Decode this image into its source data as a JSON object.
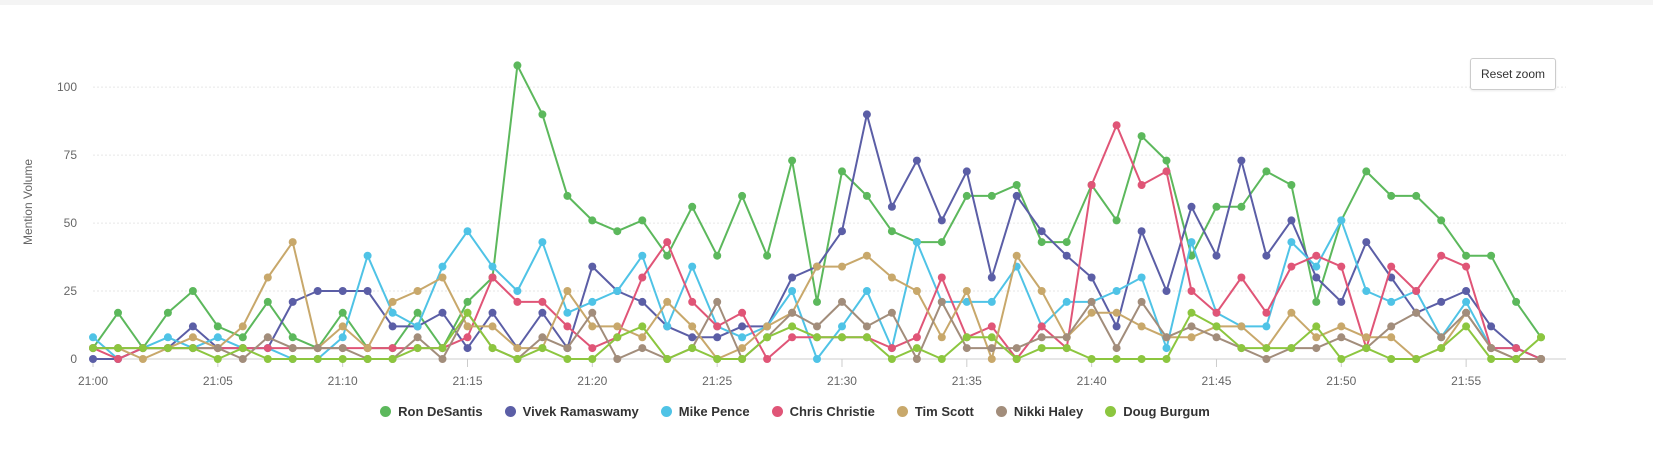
{
  "reset_zoom_label": "Reset zoom",
  "chart_data": {
    "type": "line",
    "ylabel": "Mention Volume",
    "xlabel": "",
    "ylim": [
      0,
      110
    ],
    "y_ticks": [
      "0",
      "25",
      "50",
      "75",
      "100"
    ],
    "y_tick_values": [
      0,
      25,
      50,
      75,
      100
    ],
    "x_ticks": [
      "21:00",
      "21:05",
      "21:10",
      "21:15",
      "21:20",
      "21:25",
      "21:30",
      "21:35",
      "21:40",
      "21:45",
      "21:50",
      "21:55"
    ],
    "x_tick_minutes": [
      0,
      5,
      10,
      15,
      20,
      25,
      30,
      35,
      40,
      45,
      50,
      55
    ],
    "x_range_minutes": [
      0,
      59
    ],
    "x_start": "21:00",
    "x_end": "21:58",
    "grid": "horizontal",
    "legend_position": "bottom-center",
    "series": [
      {
        "name": "Ron DeSantis",
        "color": "#5cb85c",
        "values": [
          4,
          17,
          4,
          17,
          25,
          12,
          8,
          21,
          8,
          4,
          17,
          4,
          4,
          17,
          4,
          21,
          30,
          108,
          90,
          60,
          51,
          47,
          51,
          38,
          56,
          38,
          60,
          38,
          73,
          21,
          69,
          60,
          47,
          43,
          43,
          60,
          60,
          64,
          43,
          43,
          64,
          51,
          82,
          73,
          38,
          56,
          56,
          69,
          64,
          21,
          51,
          69,
          60,
          60,
          51,
          38,
          38,
          21,
          8
        ]
      },
      {
        "name": "Vivek Ramaswamy",
        "color": "#5b5ea6",
        "values": [
          0,
          0,
          4,
          4,
          12,
          4,
          4,
          4,
          21,
          25,
          25,
          25,
          12,
          12,
          17,
          4,
          17,
          4,
          17,
          4,
          34,
          25,
          21,
          12,
          8,
          8,
          12,
          12,
          30,
          34,
          47,
          90,
          56,
          73,
          51,
          69,
          30,
          60,
          47,
          38,
          30,
          12,
          47,
          25,
          56,
          38,
          73,
          38,
          51,
          30,
          21,
          43,
          30,
          17,
          21,
          25,
          12,
          4,
          0
        ]
      },
      {
        "name": "Mike Pence",
        "color": "#4fc3e6",
        "values": [
          8,
          0,
          4,
          8,
          4,
          8,
          4,
          4,
          0,
          0,
          8,
          38,
          17,
          12,
          34,
          47,
          34,
          25,
          43,
          17,
          21,
          25,
          38,
          12,
          34,
          12,
          8,
          12,
          25,
          0,
          12,
          25,
          4,
          43,
          21,
          21,
          21,
          34,
          12,
          21,
          21,
          25,
          30,
          4,
          43,
          17,
          12,
          12,
          43,
          34,
          51,
          25,
          21,
          25,
          8,
          21,
          4,
          4,
          0
        ]
      },
      {
        "name": "Chris Christie",
        "color": "#e05577",
        "values": [
          4,
          0,
          4,
          4,
          4,
          4,
          4,
          4,
          4,
          4,
          4,
          4,
          4,
          4,
          4,
          8,
          30,
          21,
          21,
          12,
          4,
          8,
          30,
          43,
          21,
          12,
          17,
          0,
          8,
          8,
          8,
          8,
          4,
          8,
          30,
          8,
          12,
          0,
          12,
          4,
          64,
          86,
          64,
          69,
          25,
          17,
          30,
          17,
          34,
          38,
          34,
          4,
          34,
          25,
          38,
          34,
          4,
          4,
          0
        ]
      },
      {
        "name": "Tim Scott",
        "color": "#c8a86b",
        "values": [
          4,
          4,
          0,
          4,
          8,
          4,
          12,
          30,
          43,
          4,
          12,
          4,
          21,
          25,
          30,
          12,
          12,
          4,
          4,
          25,
          12,
          12,
          8,
          21,
          12,
          0,
          4,
          12,
          17,
          34,
          34,
          38,
          30,
          25,
          8,
          25,
          0,
          38,
          25,
          8,
          17,
          17,
          12,
          8,
          8,
          12,
          12,
          4,
          17,
          8,
          12,
          8,
          8,
          0,
          4,
          17,
          4,
          0,
          0
        ]
      },
      {
        "name": "Nikki Haley",
        "color": "#a28d7b",
        "values": [
          4,
          4,
          4,
          4,
          4,
          4,
          0,
          8,
          4,
          4,
          4,
          0,
          0,
          8,
          0,
          17,
          4,
          0,
          8,
          4,
          17,
          0,
          4,
          0,
          4,
          21,
          0,
          8,
          17,
          12,
          21,
          12,
          17,
          0,
          21,
          4,
          4,
          4,
          8,
          8,
          21,
          4,
          21,
          8,
          12,
          8,
          4,
          0,
          4,
          4,
          8,
          4,
          12,
          17,
          8,
          17,
          4,
          0,
          0
        ]
      },
      {
        "name": "Doug Burgum",
        "color": "#8cc63f",
        "values": [
          4,
          4,
          4,
          4,
          4,
          0,
          4,
          0,
          0,
          0,
          0,
          0,
          0,
          4,
          4,
          17,
          4,
          0,
          4,
          0,
          0,
          8,
          12,
          0,
          4,
          0,
          0,
          8,
          12,
          8,
          8,
          8,
          0,
          4,
          0,
          8,
          8,
          0,
          4,
          4,
          0,
          0,
          0,
          0,
          17,
          12,
          4,
          4,
          4,
          12,
          0,
          4,
          0,
          0,
          4,
          12,
          0,
          0,
          8
        ]
      }
    ]
  }
}
